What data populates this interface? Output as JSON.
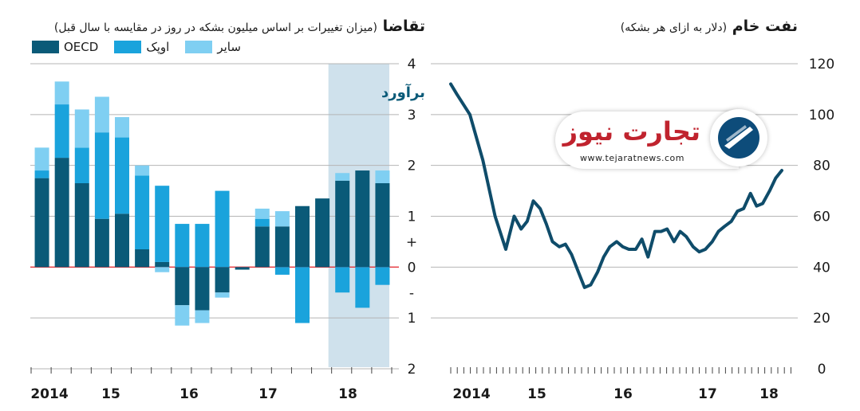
{
  "chart_data": [
    {
      "type": "bar",
      "title": "تقاضا",
      "subtitle": "(میزان تغییرات بر اساس میلیون بشکه در روز در مقایسه با سال قبل)",
      "stacked": true,
      "ylim": [
        -2,
        4
      ],
      "y_ticks": [
        "4",
        "3",
        "2",
        "1",
        "+",
        "0",
        "-",
        "1",
        "2"
      ],
      "x_tick_labels": [
        "2014",
        "15",
        "16",
        "17",
        "18"
      ],
      "legend_position": "top-left",
      "annotation": "برآورد",
      "series": [
        {
          "name": "OECD",
          "color": "#0a5a78",
          "values": [
            1.75,
            2.15,
            1.65,
            0.95,
            1.05,
            0.35,
            0.1,
            -0.75,
            -0.85,
            -0.5,
            -0.05,
            0.8,
            0.8,
            1.2,
            1.35,
            1.7,
            1.9,
            1.65
          ]
        },
        {
          "name": "اوپک",
          "color": "#1aa3dc",
          "values": [
            0.15,
            1.05,
            0.7,
            1.7,
            1.5,
            1.45,
            1.5,
            0.85,
            0.85,
            1.5,
            0.0,
            0.15,
            -0.15,
            -1.1,
            0.0,
            -0.5,
            -0.8,
            -0.35
          ]
        },
        {
          "name": "سایر",
          "color": "#7fcff2",
          "values": [
            0.45,
            0.45,
            0.75,
            0.7,
            0.4,
            0.2,
            -0.1,
            -0.4,
            -0.25,
            -0.1,
            0.0,
            0.2,
            0.3,
            0.0,
            0.0,
            0.15,
            0.0,
            0.25
          ]
        }
      ]
    },
    {
      "type": "line",
      "title": "نفت خام",
      "subtitle": "(دلار به ازای هر بشکه)",
      "ylim": [
        0,
        120
      ],
      "y_ticks": [
        "0",
        "20",
        "40",
        "60",
        "80",
        "100",
        "120"
      ],
      "x_tick_labels": [
        "2014",
        "15",
        "16",
        "17",
        "18"
      ],
      "series": [
        {
          "name": "",
          "color": "#0f4c6a",
          "x": [
            2014.0,
            2014.08,
            2014.25,
            2014.42,
            2014.58,
            2014.72,
            2014.83,
            2014.92,
            2015.0,
            2015.08,
            2015.17,
            2015.25,
            2015.33,
            2015.42,
            2015.5,
            2015.58,
            2015.67,
            2015.75,
            2015.83,
            2015.92,
            2016.0,
            2016.08,
            2016.17,
            2016.25,
            2016.33,
            2016.42,
            2016.5,
            2016.58,
            2016.67,
            2016.75,
            2016.83,
            2016.92,
            2017.0,
            2017.08,
            2017.17,
            2017.25,
            2017.33,
            2017.42,
            2017.5,
            2017.58,
            2017.67,
            2017.75,
            2017.83,
            2017.92,
            2018.0,
            2018.08,
            2018.17,
            2018.25,
            2018.33
          ],
          "y": [
            112,
            108,
            100,
            82,
            60,
            47,
            60,
            55,
            58,
            66,
            63,
            57,
            50,
            48,
            49,
            45,
            38,
            32,
            33,
            38,
            44,
            48,
            50,
            48,
            47,
            47,
            51,
            44,
            54,
            54,
            55,
            50,
            54,
            52,
            48,
            46,
            47,
            50,
            54,
            56,
            58,
            62,
            63,
            69,
            64,
            65,
            70,
            75,
            78
          ]
        }
      ]
    }
  ],
  "logo": {
    "name": "تجارت نیوز",
    "url": "www.tejaratnews.com"
  }
}
